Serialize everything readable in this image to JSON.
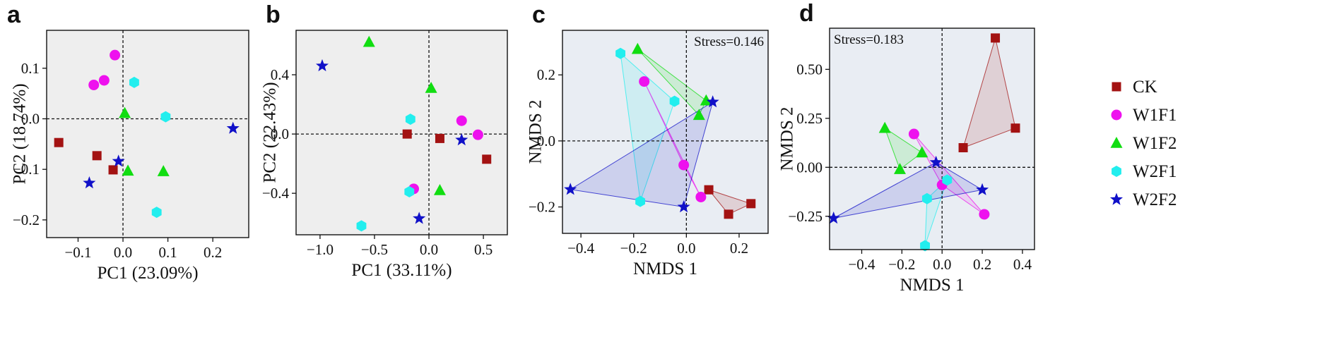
{
  "legend": [
    {
      "name": "CK",
      "marker": "square",
      "color": "#a31212"
    },
    {
      "name": "W1F1",
      "marker": "circle",
      "color": "#ee11ee"
    },
    {
      "name": "W1F2",
      "marker": "triangle",
      "color": "#11dd11"
    },
    {
      "name": "W2F1",
      "marker": "hexagon",
      "color": "#22eeee"
    },
    {
      "name": "W2F2",
      "marker": "star",
      "color": "#1010c8"
    }
  ],
  "chart_data": [
    {
      "type": "scatter",
      "panel": "a",
      "xlabel": "PC1 (23.09%)",
      "ylabel": "PC2 (18.74%)",
      "xlim": [
        -0.17,
        0.28
      ],
      "ylim": [
        -0.235,
        0.175
      ],
      "xticks": [
        {
          "v": -0.1,
          "label": "−0.1"
        },
        {
          "v": 0.0,
          "label": "0.0"
        },
        {
          "v": 0.1,
          "label": "0.1"
        },
        {
          "v": 0.2,
          "label": "0.2"
        }
      ],
      "yticks": [
        {
          "v": -0.2,
          "label": "−0.2"
        },
        {
          "v": -0.1,
          "label": "−0.1"
        },
        {
          "v": 0.0,
          "label": "0.0"
        },
        {
          "v": 0.1,
          "label": "0.1"
        }
      ],
      "series": [
        {
          "name": "CK",
          "points": [
            [
              -0.143,
              -0.047
            ],
            [
              -0.058,
              -0.073
            ],
            [
              -0.022,
              -0.101
            ]
          ]
        },
        {
          "name": "W1F1",
          "points": [
            [
              -0.065,
              0.067
            ],
            [
              -0.042,
              0.076
            ],
            [
              -0.018,
              0.126
            ]
          ]
        },
        {
          "name": "W1F2",
          "points": [
            [
              0.004,
              0.011
            ],
            [
              0.011,
              -0.103
            ],
            [
              0.09,
              -0.104
            ]
          ]
        },
        {
          "name": "W2F1",
          "points": [
            [
              0.025,
              0.072
            ],
            [
              0.095,
              0.004
            ],
            [
              0.075,
              -0.185
            ]
          ]
        },
        {
          "name": "W2F2",
          "points": [
            [
              -0.075,
              -0.127
            ],
            [
              -0.01,
              -0.084
            ],
            [
              0.245,
              -0.019
            ]
          ]
        }
      ]
    },
    {
      "type": "scatter",
      "panel": "b",
      "xlabel": "PC1 (33.11%)",
      "ylabel": "PC2 (22.43%)",
      "xlim": [
        -1.22,
        0.72
      ],
      "ylim": [
        -0.68,
        0.7
      ],
      "xticks": [
        {
          "v": -1.0,
          "label": "−1.0"
        },
        {
          "v": -0.5,
          "label": "−0.5"
        },
        {
          "v": 0.0,
          "label": "0.0"
        },
        {
          "v": 0.5,
          "label": "0.5"
        }
      ],
      "yticks": [
        {
          "v": -0.4,
          "label": "−0.4"
        },
        {
          "v": 0.0,
          "label": "0.0"
        },
        {
          "v": 0.4,
          "label": "0.4"
        }
      ],
      "series": [
        {
          "name": "CK",
          "points": [
            [
              -0.2,
              0.0
            ],
            [
              0.1,
              -0.03
            ],
            [
              0.53,
              -0.17
            ]
          ]
        },
        {
          "name": "W1F1",
          "points": [
            [
              0.3,
              0.09
            ],
            [
              0.45,
              -0.005
            ],
            [
              -0.14,
              -0.37
            ]
          ]
        },
        {
          "name": "W1F2",
          "points": [
            [
              -0.55,
              0.62
            ],
            [
              0.02,
              0.31
            ],
            [
              0.1,
              -0.38
            ]
          ]
        },
        {
          "name": "W2F1",
          "points": [
            [
              -0.17,
              0.1
            ],
            [
              -0.18,
              -0.39
            ],
            [
              -0.62,
              -0.62
            ]
          ]
        },
        {
          "name": "W2F2",
          "points": [
            [
              -0.98,
              0.46
            ],
            [
              0.3,
              -0.04
            ],
            [
              -0.09,
              -0.57
            ]
          ]
        }
      ]
    },
    {
      "type": "scatter",
      "panel": "c",
      "xlabel": "NMDS 1",
      "ylabel": "NMDS 2",
      "annotation": "Stress=0.146",
      "xlim": [
        -0.47,
        0.31
      ],
      "ylim": [
        -0.28,
        0.335
      ],
      "xticks": [
        {
          "v": -0.4,
          "label": "−0.4"
        },
        {
          "v": -0.2,
          "label": "−0.2"
        },
        {
          "v": 0.0,
          "label": "0.0"
        },
        {
          "v": 0.2,
          "label": "0.2"
        }
      ],
      "yticks": [
        {
          "v": -0.2,
          "label": "−0.2"
        },
        {
          "v": 0.0,
          "label": "0.0"
        },
        {
          "v": 0.2,
          "label": "0.2"
        }
      ],
      "hulls": true,
      "series": [
        {
          "name": "CK",
          "points": [
            [
              0.085,
              -0.148
            ],
            [
              0.245,
              -0.19
            ],
            [
              0.16,
              -0.222
            ]
          ]
        },
        {
          "name": "W1F1",
          "points": [
            [
              -0.16,
              0.18
            ],
            [
              -0.01,
              -0.073
            ],
            [
              0.055,
              -0.17
            ]
          ]
        },
        {
          "name": "W1F2",
          "points": [
            [
              -0.185,
              0.278
            ],
            [
              0.075,
              0.122
            ],
            [
              0.048,
              0.078
            ]
          ]
        },
        {
          "name": "W2F1",
          "points": [
            [
              -0.25,
              0.265
            ],
            [
              -0.045,
              0.12
            ],
            [
              -0.175,
              -0.183
            ]
          ]
        },
        {
          "name": "W2F2",
          "points": [
            [
              0.1,
              0.118
            ],
            [
              -0.44,
              -0.147
            ],
            [
              -0.01,
              -0.2
            ]
          ]
        }
      ]
    },
    {
      "type": "scatter",
      "panel": "d",
      "xlabel": "NMDS 1",
      "ylabel": "NMDS 2",
      "annotation": "Stress=0.183",
      "xlim": [
        -0.56,
        0.46
      ],
      "ylim": [
        -0.42,
        0.71
      ],
      "xticks": [
        {
          "v": -0.4,
          "label": "−0.4"
        },
        {
          "v": -0.2,
          "label": "−0.2"
        },
        {
          "v": 0.0,
          "label": "0.0"
        },
        {
          "v": 0.2,
          "label": "0.2"
        },
        {
          "v": 0.4,
          "label": "0.4"
        }
      ],
      "yticks": [
        {
          "v": -0.25,
          "label": "−0.25"
        },
        {
          "v": 0.0,
          "label": "0.00"
        },
        {
          "v": 0.25,
          "label": "0.25"
        },
        {
          "v": 0.5,
          "label": "0.50"
        }
      ],
      "hulls": true,
      "series": [
        {
          "name": "CK",
          "points": [
            [
              0.265,
              0.66
            ],
            [
              0.365,
              0.2
            ],
            [
              0.105,
              0.1
            ]
          ]
        },
        {
          "name": "W1F1",
          "points": [
            [
              -0.14,
              0.17
            ],
            [
              0.0,
              -0.09
            ],
            [
              0.21,
              -0.24
            ]
          ]
        },
        {
          "name": "W1F2",
          "points": [
            [
              -0.285,
              0.2
            ],
            [
              -0.1,
              0.075
            ],
            [
              -0.21,
              -0.01
            ]
          ]
        },
        {
          "name": "W2F1",
          "points": [
            [
              0.025,
              -0.065
            ],
            [
              -0.075,
              -0.16
            ],
            [
              -0.085,
              -0.4
            ]
          ]
        },
        {
          "name": "W2F2",
          "points": [
            [
              -0.54,
              -0.26
            ],
            [
              -0.03,
              0.025
            ],
            [
              0.2,
              -0.115
            ]
          ]
        }
      ]
    }
  ]
}
